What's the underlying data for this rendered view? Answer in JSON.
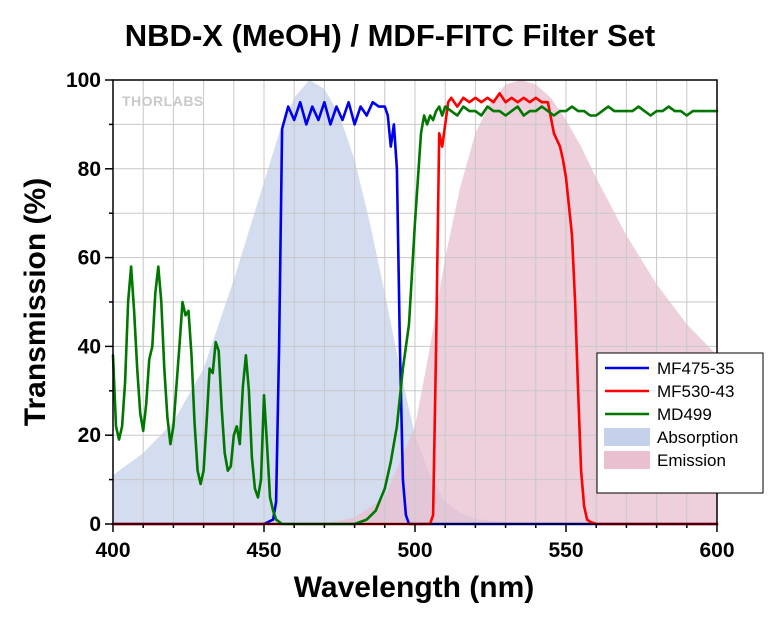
{
  "chart_data": {
    "type": "line",
    "title": "NBD-X (MeOH) / MDF-FITC Filter Set",
    "xlabel": "Wavelength (nm)",
    "ylabel": "Transmission (%)",
    "xlim": [
      400,
      600
    ],
    "ylim": [
      0,
      100
    ],
    "xticks": [
      400,
      450,
      500,
      550,
      600
    ],
    "yticks": [
      0,
      20,
      40,
      60,
      80,
      100
    ],
    "grid": true,
    "legend_position": "bottom-right",
    "watermark": "THORLABS",
    "series": [
      {
        "name": "MF475-35",
        "kind": "line",
        "color": "#0000ee",
        "x": [
          400,
          450,
          453,
          454,
          455,
          456,
          458,
          460,
          462,
          464,
          466,
          468,
          470,
          472,
          474,
          476,
          478,
          480,
          482,
          484,
          486,
          488,
          490,
          491,
          492,
          493,
          494,
          495,
          496,
          497,
          498,
          500,
          600
        ],
        "y": [
          0,
          0,
          1,
          5,
          40,
          89,
          94,
          91,
          95,
          90,
          94,
          91,
          95,
          90,
          94,
          91,
          95,
          90,
          94,
          92,
          95,
          94,
          94,
          92,
          85,
          90,
          80,
          40,
          10,
          2,
          0,
          0,
          0
        ]
      },
      {
        "name": "MF530-43",
        "kind": "line",
        "color": "#ff0000",
        "x": [
          400,
          505,
          506,
          507,
          508,
          509,
          510,
          511,
          512,
          514,
          516,
          518,
          520,
          522,
          524,
          526,
          528,
          530,
          532,
          534,
          536,
          538,
          540,
          542,
          544,
          546,
          548,
          549,
          550,
          552,
          553,
          554,
          555,
          556,
          557,
          558,
          560,
          600
        ],
        "y": [
          0,
          0,
          2,
          40,
          88,
          85,
          90,
          95,
          96,
          94,
          96,
          95,
          96,
          95,
          96,
          95,
          97,
          95,
          96,
          95,
          96,
          95,
          96,
          95,
          95,
          88,
          85,
          82,
          78,
          65,
          50,
          30,
          12,
          4,
          1,
          0.5,
          0,
          0
        ]
      },
      {
        "name": "MD499",
        "kind": "line",
        "color": "#007700",
        "x": [
          400,
          401,
          402,
          403,
          404,
          405,
          406,
          407,
          408,
          409,
          410,
          411,
          412,
          413,
          414,
          415,
          416,
          417,
          418,
          419,
          420,
          421,
          422,
          423,
          424,
          425,
          426,
          427,
          428,
          429,
          430,
          431,
          432,
          433,
          434,
          435,
          436,
          437,
          438,
          439,
          440,
          441,
          442,
          443,
          444,
          445,
          446,
          447,
          448,
          449,
          450,
          451,
          452,
          453,
          454,
          455,
          456,
          457,
          458,
          459,
          460,
          461,
          462,
          463,
          464,
          466,
          468,
          470,
          475,
          480,
          484,
          487,
          490,
          492,
          494,
          496,
          498,
          500,
          502,
          503,
          504,
          505,
          506,
          507,
          508,
          509,
          510,
          512,
          514,
          516,
          518,
          520,
          522,
          524,
          526,
          528,
          530,
          532,
          534,
          536,
          538,
          540,
          542,
          544,
          546,
          548,
          550,
          552,
          554,
          556,
          558,
          560,
          562,
          564,
          566,
          568,
          570,
          572,
          574,
          576,
          578,
          580,
          582,
          584,
          586,
          588,
          590,
          592,
          594,
          596,
          598,
          600
        ],
        "y": [
          38,
          22,
          19,
          22,
          32,
          50,
          58,
          48,
          35,
          25,
          21,
          27,
          37,
          40,
          52,
          58,
          50,
          35,
          24,
          18,
          22,
          31,
          40,
          50,
          47,
          48,
          38,
          23,
          12,
          9,
          12,
          23,
          35,
          34,
          41,
          39,
          26,
          16,
          12,
          13,
          20,
          22,
          18,
          31,
          38,
          30,
          15,
          8,
          6,
          10,
          29,
          18,
          6,
          3,
          1,
          0.5,
          0,
          0,
          0,
          0,
          0,
          0,
          0,
          0,
          0,
          0,
          0,
          0,
          0,
          0,
          1,
          3,
          8,
          14,
          22,
          35,
          45,
          68,
          88,
          92,
          90,
          92,
          91,
          93,
          94,
          92,
          94,
          93,
          92,
          94,
          93,
          93,
          92,
          94,
          93,
          93,
          92,
          93,
          94,
          92,
          93,
          93,
          94,
          93,
          92,
          93,
          93,
          94,
          93,
          93,
          92,
          92,
          93,
          94,
          93,
          93,
          93,
          93,
          94,
          93,
          92,
          93,
          93,
          94,
          93,
          93,
          92,
          93,
          93,
          93,
          93,
          93
        ]
      },
      {
        "name": "Absorption",
        "kind": "area",
        "color": "#c5d0ea",
        "x": [
          400,
          410,
          420,
          430,
          440,
          450,
          455,
          460,
          465,
          470,
          475,
          480,
          485,
          490,
          495,
          500,
          505,
          510,
          515,
          520,
          530,
          540,
          550,
          560,
          600
        ],
        "y": [
          11,
          16,
          23,
          35,
          55,
          77,
          88,
          96,
          100,
          98,
          92,
          82,
          68,
          52,
          35,
          20,
          11,
          5,
          2.5,
          1.2,
          0.4,
          0.1,
          0,
          0,
          0
        ]
      },
      {
        "name": "Emission",
        "kind": "area",
        "color": "#e8c0d0",
        "x": [
          400,
          470,
          480,
          490,
          500,
          505,
          510,
          515,
          520,
          525,
          530,
          535,
          540,
          545,
          550,
          555,
          560,
          570,
          580,
          590,
          600
        ],
        "y": [
          0,
          0,
          1.5,
          6,
          22,
          40,
          60,
          76,
          88,
          95,
          99,
          100,
          99,
          96,
          91,
          85,
          78,
          65,
          54,
          45,
          38
        ]
      }
    ]
  }
}
